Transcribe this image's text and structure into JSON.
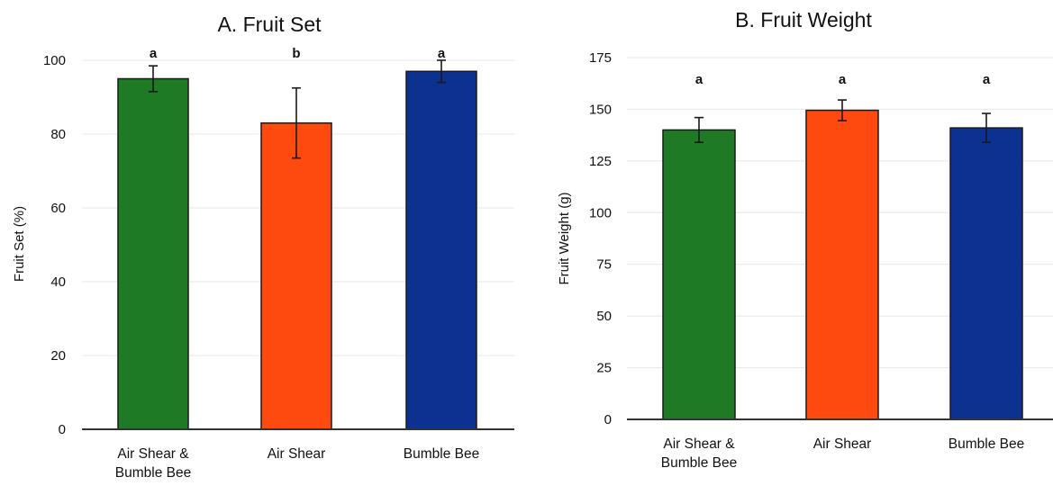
{
  "colors": {
    "series": [
      "#1f7a25",
      "#ff4a0f",
      "#0d3190"
    ]
  },
  "chart_data": [
    {
      "type": "bar",
      "title": "A. Fruit Set",
      "xlabel": "",
      "ylabel": "Fruit Set (%)",
      "categories": [
        [
          "Air Shear &",
          "Bumble Bee"
        ],
        [
          "Air Shear"
        ],
        [
          "Bumble Bee"
        ]
      ],
      "values": [
        95,
        83,
        97
      ],
      "errors": [
        3.5,
        9.5,
        3
      ],
      "sig_letters": [
        "a",
        "b",
        "a"
      ],
      "ylim": [
        0,
        100
      ],
      "yticks": [
        0,
        20,
        40,
        60,
        80,
        100
      ],
      "ytick_labels": [
        "0",
        "20",
        "40",
        "60",
        "80",
        "100"
      ],
      "grid": true
    },
    {
      "type": "bar",
      "title": "B. Fruit Weight",
      "xlabel": "",
      "ylabel": "Fruit Weight (g)",
      "categories": [
        [
          "Air Shear &",
          "Bumble Bee"
        ],
        [
          "Air Shear"
        ],
        [
          "Bumble Bee"
        ]
      ],
      "values": [
        140,
        149.5,
        141
      ],
      "errors": [
        6,
        5,
        7
      ],
      "sig_letters": [
        "a",
        "a",
        "a"
      ],
      "ylim": [
        0,
        175
      ],
      "yticks": [
        0,
        25,
        50,
        75,
        100,
        125,
        150,
        175
      ],
      "ytick_labels": [
        "0",
        "25",
        "50",
        "75",
        "100",
        "125",
        "150",
        "175"
      ],
      "grid": true
    }
  ]
}
